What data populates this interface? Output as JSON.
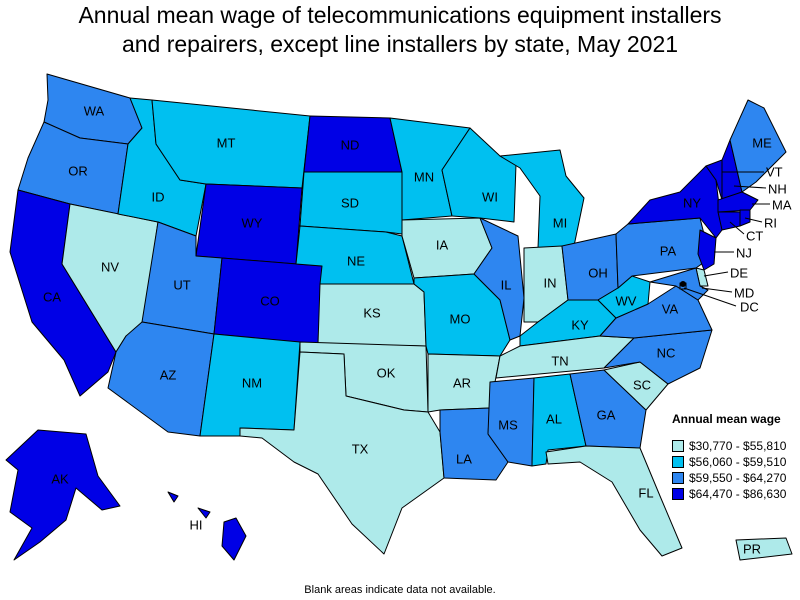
{
  "title_line1": "Annual mean wage of telecommunications equipment installers",
  "title_line2": "and repairers, except line installers by state, May 2021",
  "legend": {
    "title": "Annual mean wage",
    "items": [
      {
        "label": "$30,770 - $55,810",
        "color": "#aeeaea"
      },
      {
        "label": "$56,060 - $59,510",
        "color": "#00c0f0"
      },
      {
        "label": "$59,550 - $64,270",
        "color": "#2e86f0"
      },
      {
        "label": "$64,470 - $86,630",
        "color": "#0000e6"
      }
    ]
  },
  "footnote": "Blank areas indicate data not available.",
  "states": {
    "WA": 2,
    "OR": 2,
    "CA": 3,
    "NV": 0,
    "ID": 1,
    "MT": 1,
    "WY": 3,
    "UT": 2,
    "AZ": 2,
    "CO": 3,
    "NM": 1,
    "ND": 3,
    "SD": 1,
    "NE": 1,
    "KS": 0,
    "OK": 0,
    "TX": 0,
    "MN": 1,
    "IA": 0,
    "MO": 1,
    "AR": 0,
    "LA": 2,
    "WI": 1,
    "IL": 2,
    "MI": 1,
    "IN": 0,
    "OH": 2,
    "KY": 1,
    "TN": 0,
    "MS": 2,
    "AL": 1,
    "GA": 2,
    "FL": 0,
    "SC": 0,
    "NC": 2,
    "VA": 2,
    "WV": 1,
    "PA": 2,
    "NY": 3,
    "ME": 2,
    "VT": 3,
    "NH": 3,
    "MA": 3,
    "RI": 3,
    "CT": 3,
    "NJ": 3,
    "DE": 0,
    "MD": 2,
    "DC": 2,
    "AK": 3,
    "HI": 3,
    "PR": 0
  }
}
